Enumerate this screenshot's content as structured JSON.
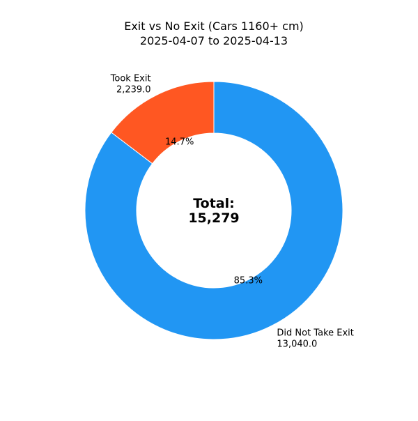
{
  "chart_data": {
    "type": "pie",
    "variant": "donut",
    "title_line1": "Exit vs No Exit (Cars 1160+ cm)",
    "title_line2": "2025-04-07 to 2025-04-13",
    "center_label_line1": "Total:",
    "center_label_line2": "15,279",
    "total": 15279,
    "slices": [
      {
        "name": "Took Exit",
        "value": 2239,
        "value_label": "2,239.0",
        "percent_label": "14.7%",
        "color": "#FF5722"
      },
      {
        "name": "Did Not Take Exit",
        "value": 13040,
        "value_label": "13,040.0",
        "percent_label": "85.3%",
        "color": "#2196F3"
      }
    ]
  }
}
